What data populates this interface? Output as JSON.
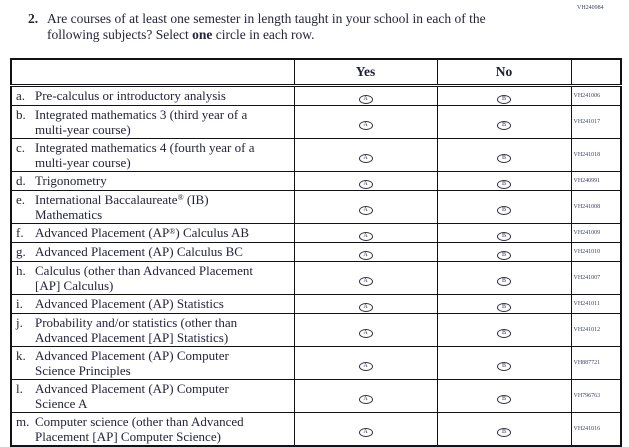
{
  "form_code": "VH240984",
  "question": {
    "number": "2.",
    "text_before_bold": "Are courses of at least one semester in length taught in your school in each of the\nfollowing subjects? Select ",
    "text_bold": "one",
    "text_after_bold": " circle in each row."
  },
  "table": {
    "headers": {
      "yes": "Yes",
      "no": "No"
    },
    "bubbles": {
      "yes_letter": "A",
      "no_letter": "B"
    },
    "rows": [
      {
        "letter": "a.",
        "label": "Pre-calculus or introductory analysis",
        "code": "VH241006"
      },
      {
        "letter": "b.",
        "label": "Integrated mathematics 3 (third year of a\nmulti-year course)",
        "code": "VH241017"
      },
      {
        "letter": "c.",
        "label": "Integrated mathematics 4 (fourth year of a\nmulti-year course)",
        "code": "VH241018"
      },
      {
        "letter": "d.",
        "label": "Trigonometry",
        "code": "VH240991"
      },
      {
        "letter": "e.",
        "label": "International Baccalaureate® (IB)\nMathematics",
        "code": "VH241008"
      },
      {
        "letter": "f.",
        "label": "Advanced Placement (AP®) Calculus AB",
        "code": "VH241009"
      },
      {
        "letter": "g.",
        "label": "Advanced Placement (AP) Calculus BC",
        "code": "VH241010"
      },
      {
        "letter": "h.",
        "label": "Calculus (other than Advanced Placement\n[AP] Calculus)",
        "code": "VH241007"
      },
      {
        "letter": "i.",
        "label": "Advanced Placement (AP) Statistics",
        "code": "VH241011"
      },
      {
        "letter": "j.",
        "label": "Probability and/or statistics (other than\nAdvanced Placement [AP] Statistics)",
        "code": "VH241012"
      },
      {
        "letter": "k.",
        "label": "Advanced Placement (AP) Computer\nScience Principles",
        "code": "VH887721"
      },
      {
        "letter": "l.",
        "label": "Advanced Placement (AP) Computer\nScience A",
        "code": "VH796763"
      },
      {
        "letter": "m.",
        "label": "Computer science (other than Advanced\nPlacement [AP] Computer Science)",
        "code": "VH241016"
      }
    ]
  },
  "colors": {
    "background": "#ffffff",
    "ink_text": "#23233c",
    "code_text": "#3a3f66",
    "border": "#111118"
  }
}
